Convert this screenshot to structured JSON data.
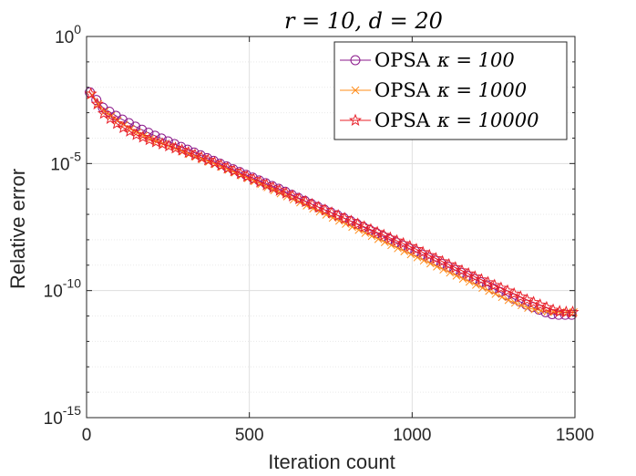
{
  "chart_data": {
    "type": "line",
    "title": "r = 10, d = 20",
    "xlabel": "Iteration count",
    "ylabel": "Relative error",
    "x_scale": "linear",
    "y_scale": "log",
    "xlim": [
      0,
      1500
    ],
    "ylim": [
      1e-15,
      1
    ],
    "grid": true,
    "legend_position": "top-right",
    "x_ticks": [
      {
        "value": 0,
        "label": "0"
      },
      {
        "value": 500,
        "label": "500"
      },
      {
        "value": 1000,
        "label": "1000"
      },
      {
        "value": 1500,
        "label": "1500"
      }
    ],
    "y_ticks": [
      {
        "exp": 0,
        "base": "10",
        "sup": "0"
      },
      {
        "exp": -5,
        "base": "10",
        "sup": "-5"
      },
      {
        "exp": -10,
        "base": "10",
        "sup": "-10"
      },
      {
        "exp": -15,
        "base": "10",
        "sup": "-15"
      }
    ],
    "series": [
      {
        "name": "OPSA κ = 100",
        "legend_prefix": "OPSA",
        "legend_kappa": "κ = 100",
        "color": "#8B1A8B",
        "marker": "circle",
        "log10_points": [
          [
            10,
            -2.2
          ],
          [
            30,
            -2.5
          ],
          [
            50,
            -2.8
          ],
          [
            100,
            -3.2
          ],
          [
            150,
            -3.55
          ],
          [
            200,
            -3.85
          ],
          [
            300,
            -4.4
          ],
          [
            400,
            -4.95
          ],
          [
            500,
            -5.5
          ],
          [
            600,
            -6.05
          ],
          [
            700,
            -6.65
          ],
          [
            800,
            -7.2
          ],
          [
            900,
            -7.8
          ],
          [
            1000,
            -8.4
          ],
          [
            1100,
            -9.0
          ],
          [
            1200,
            -9.6
          ],
          [
            1300,
            -10.25
          ],
          [
            1350,
            -10.55
          ],
          [
            1400,
            -10.8
          ],
          [
            1420,
            -10.9
          ],
          [
            1440,
            -10.95
          ],
          [
            1460,
            -10.95
          ],
          [
            1480,
            -10.95
          ],
          [
            1500,
            -10.95
          ]
        ]
      },
      {
        "name": "OPSA κ = 1000",
        "legend_prefix": "OPSA",
        "legend_kappa": "κ = 1000",
        "color": "#FF8C1A",
        "marker": "x",
        "log10_points": [
          [
            10,
            -2.2
          ],
          [
            30,
            -2.55
          ],
          [
            50,
            -2.9
          ],
          [
            100,
            -3.35
          ],
          [
            150,
            -3.75
          ],
          [
            200,
            -4.05
          ],
          [
            300,
            -4.55
          ],
          [
            400,
            -5.05
          ],
          [
            500,
            -5.6
          ],
          [
            600,
            -6.2
          ],
          [
            700,
            -6.8
          ],
          [
            800,
            -7.4
          ],
          [
            900,
            -8.0
          ],
          [
            1000,
            -8.6
          ],
          [
            1100,
            -9.2
          ],
          [
            1200,
            -9.8
          ],
          [
            1300,
            -10.4
          ],
          [
            1360,
            -10.7
          ],
          [
            1400,
            -10.8
          ],
          [
            1440,
            -10.85
          ],
          [
            1480,
            -10.85
          ],
          [
            1500,
            -10.85
          ]
        ]
      },
      {
        "name": "OPSA κ = 10000",
        "legend_prefix": "OPSA",
        "legend_kappa": "κ = 10000",
        "color": "#E8202A",
        "marker": "star",
        "log10_points": [
          [
            10,
            -2.2
          ],
          [
            30,
            -2.6
          ],
          [
            50,
            -3.0
          ],
          [
            100,
            -3.5
          ],
          [
            150,
            -3.85
          ],
          [
            200,
            -4.1
          ],
          [
            300,
            -4.5
          ],
          [
            400,
            -5.0
          ],
          [
            500,
            -5.55
          ],
          [
            600,
            -6.1
          ],
          [
            700,
            -6.65
          ],
          [
            800,
            -7.2
          ],
          [
            900,
            -7.75
          ],
          [
            1000,
            -8.3
          ],
          [
            1100,
            -8.9
          ],
          [
            1200,
            -9.5
          ],
          [
            1300,
            -10.05
          ],
          [
            1350,
            -10.35
          ],
          [
            1400,
            -10.6
          ],
          [
            1440,
            -10.8
          ],
          [
            1470,
            -10.85
          ],
          [
            1500,
            -10.85
          ]
        ]
      }
    ]
  }
}
